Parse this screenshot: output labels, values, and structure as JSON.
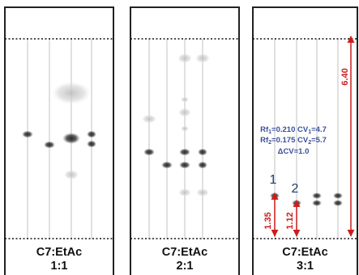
{
  "plates": [
    {
      "solvent": "C7:EtAc",
      "ratio": "1:1",
      "spots": [
        {
          "lane": 0,
          "y": 166,
          "rx": 7,
          "ry": 4.5,
          "shade": "dark"
        },
        {
          "lane": 1,
          "y": 179,
          "rx": 7,
          "ry": 4.5,
          "shade": "dark"
        },
        {
          "lane": 2,
          "y": 171,
          "rx": 11,
          "ry": 7,
          "shade": "dark"
        },
        {
          "lane": 3,
          "y": 166,
          "rx": 6,
          "ry": 4.5,
          "shade": "dark"
        },
        {
          "lane": 3,
          "y": 178,
          "rx": 6,
          "ry": 4.5,
          "shade": "dark"
        },
        {
          "lane": 2,
          "y": 115,
          "rx": 24,
          "ry": 14,
          "shade": "faint"
        },
        {
          "lane": 2,
          "y": 216,
          "rx": 9,
          "ry": 6,
          "shade": "faint"
        }
      ]
    },
    {
      "solvent": "C7:EtAc",
      "ratio": "2:1",
      "spots": [
        {
          "lane": 2,
          "y": 72,
          "rx": 9,
          "ry": 6,
          "shade": "faint"
        },
        {
          "lane": 3,
          "y": 72,
          "rx": 9,
          "ry": 6,
          "shade": "faint"
        },
        {
          "lane": 2,
          "y": 123,
          "rx": 5,
          "ry": 3.5,
          "shade": "faint"
        },
        {
          "lane": 2,
          "y": 139,
          "rx": 8,
          "ry": 5.5,
          "shade": "faint"
        },
        {
          "lane": 0,
          "y": 147,
          "rx": 9,
          "ry": 5.5,
          "shade": "faint"
        },
        {
          "lane": 2,
          "y": 159,
          "rx": 5,
          "ry": 3.5,
          "shade": "faint"
        },
        {
          "lane": 0,
          "y": 188,
          "rx": 7,
          "ry": 4.5,
          "shade": "dark"
        },
        {
          "lane": 2,
          "y": 188,
          "rx": 7,
          "ry": 4.5,
          "shade": "dark"
        },
        {
          "lane": 3,
          "y": 188,
          "rx": 6,
          "ry": 4.5,
          "shade": "dark"
        },
        {
          "lane": 1,
          "y": 204,
          "rx": 7,
          "ry": 4.5,
          "shade": "dark"
        },
        {
          "lane": 2,
          "y": 204,
          "rx": 7,
          "ry": 4.5,
          "shade": "dark"
        },
        {
          "lane": 3,
          "y": 204,
          "rx": 6,
          "ry": 4.5,
          "shade": "dark"
        },
        {
          "lane": 2,
          "y": 238,
          "rx": 8,
          "ry": 5,
          "shade": "faint"
        },
        {
          "lane": 3,
          "y": 238,
          "rx": 8,
          "ry": 5,
          "shade": "faint"
        }
      ]
    },
    {
      "solvent": "C7:EtAc",
      "ratio": "3:1",
      "spots": [
        {
          "lane": 0,
          "y": 242,
          "rx": 6,
          "ry": 4,
          "shade": "dark"
        },
        {
          "lane": 1,
          "y": 251,
          "rx": 6,
          "ry": 4,
          "shade": "dark"
        },
        {
          "lane": 2,
          "y": 242,
          "rx": 6,
          "ry": 4,
          "shade": "dark"
        },
        {
          "lane": 2,
          "y": 251,
          "rx": 6,
          "ry": 4,
          "shade": "dark"
        },
        {
          "lane": 3,
          "y": 242,
          "rx": 6,
          "ry": 4,
          "shade": "dark"
        },
        {
          "lane": 3,
          "y": 251,
          "rx": 6,
          "ry": 4,
          "shade": "dark"
        }
      ],
      "markers": [
        "1",
        "2"
      ],
      "measurements": {
        "total": "6.40",
        "spot1": "1.35",
        "spot2": "1.12"
      },
      "note_lines": [
        {
          "rf": "Rf",
          "rf_sub": "1",
          "rf_val": "=0.210",
          "cv": " CV",
          "cv_sub": "1",
          "cv_val": "=4.7"
        },
        {
          "rf": "Rf",
          "rf_sub": "2",
          "rf_val": "=0.175",
          "cv": " CV",
          "cv_sub": "2",
          "cv_val": "=5.7"
        }
      ],
      "delta_line": "ΔCV=1.0"
    }
  ],
  "colors": {
    "frame": "#222222",
    "lane": "#cccccc",
    "solvent_line": "#111111",
    "spot_dark": "#2a2a2a",
    "spot_faint": "#bdbdbd",
    "measure": "#cc1d1d",
    "note": "#3a4f9a",
    "marker": "#1e3c78"
  }
}
